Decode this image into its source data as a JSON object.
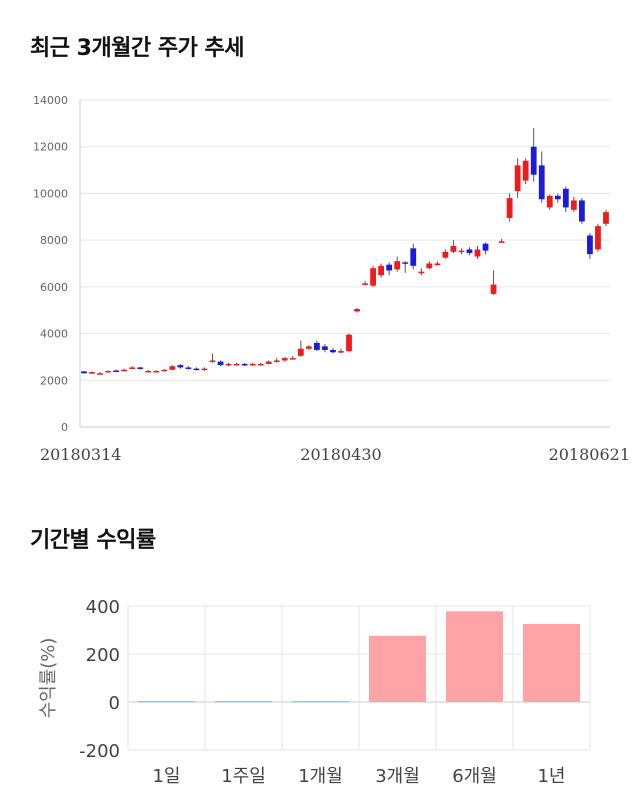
{
  "sections": {
    "price_title": "최근 3개월간 주가 추세",
    "returns_title": "기간별 수익률"
  },
  "colors": {
    "up": "#ee1c1c",
    "down": "#1c1cd8",
    "bar_positive": "#ffa3a6",
    "bar_zero_line": "#9fc3dc",
    "grid": "#e6e6e6"
  },
  "chart_data": [
    {
      "type": "candlestick",
      "title": "최근 3개월간 주가 추세",
      "y_ticks": [
        0,
        2000,
        4000,
        6000,
        8000,
        10000,
        12000,
        14000
      ],
      "ylim": [
        0,
        14000
      ],
      "x_tick_labels": [
        "20180314",
        "20180430",
        "20180621"
      ],
      "x_tick_index": [
        0,
        32,
        65
      ],
      "grid": true,
      "candles": [
        [
          2380,
          2300,
          2400,
          2280
        ],
        [
          2300,
          2350,
          2380,
          2270
        ],
        [
          2300,
          2300,
          2350,
          2250
        ],
        [
          2350,
          2400,
          2420,
          2330
        ],
        [
          2420,
          2380,
          2460,
          2350
        ],
        [
          2400,
          2450,
          2500,
          2380
        ],
        [
          2500,
          2550,
          2600,
          2480
        ],
        [
          2550,
          2500,
          2580,
          2450
        ],
        [
          2400,
          2400,
          2450,
          2350
        ],
        [
          2350,
          2400,
          2430,
          2330
        ],
        [
          2400,
          2450,
          2480,
          2380
        ],
        [
          2450,
          2600,
          2650,
          2430
        ],
        [
          2650,
          2550,
          2700,
          2500
        ],
        [
          2550,
          2500,
          2600,
          2450
        ],
        [
          2500,
          2450,
          2550,
          2420
        ],
        [
          2450,
          2500,
          2550,
          2400
        ],
        [
          2800,
          2850,
          3150,
          2750
        ],
        [
          2800,
          2650,
          2850,
          2600
        ],
        [
          2650,
          2700,
          2750,
          2600
        ],
        [
          2700,
          2700,
          2750,
          2650
        ],
        [
          2700,
          2650,
          2750,
          2600
        ],
        [
          2650,
          2700,
          2750,
          2620
        ],
        [
          2700,
          2700,
          2750,
          2650
        ],
        [
          2700,
          2800,
          2850,
          2680
        ],
        [
          2800,
          2850,
          2950,
          2750
        ],
        [
          2850,
          2950,
          3000,
          2800
        ],
        [
          2950,
          2950,
          3050,
          2900
        ],
        [
          3050,
          3350,
          3700,
          3000
        ],
        [
          3350,
          3450,
          3500,
          3300
        ],
        [
          3600,
          3300,
          3700,
          3250
        ],
        [
          3450,
          3300,
          3550,
          3200
        ],
        [
          3300,
          3200,
          3400,
          3150
        ],
        [
          3200,
          3250,
          3350,
          3150
        ],
        [
          3250,
          3950,
          4000,
          3200
        ],
        [
          4950,
          5050,
          5100,
          4900
        ],
        [
          6150,
          6150,
          6250,
          6050
        ],
        [
          6050,
          6800,
          6900,
          6000
        ],
        [
          6500,
          6900,
          7000,
          6400
        ],
        [
          6950,
          6700,
          7050,
          6500
        ],
        [
          6750,
          7100,
          7300,
          6650
        ],
        [
          7050,
          7000,
          7100,
          6600
        ],
        [
          7650,
          6900,
          7850,
          6750
        ],
        [
          6650,
          6650,
          6800,
          6500
        ],
        [
          6800,
          7000,
          7100,
          6750
        ],
        [
          7000,
          7000,
          7100,
          6900
        ],
        [
          7250,
          7500,
          7600,
          7200
        ],
        [
          7500,
          7750,
          8000,
          7450
        ],
        [
          7500,
          7550,
          7650,
          7400
        ],
        [
          7600,
          7450,
          7700,
          7350
        ],
        [
          7300,
          7600,
          7750,
          7200
        ],
        [
          7850,
          7550,
          7900,
          7400
        ],
        [
          5700,
          6100,
          6700,
          5650
        ],
        [
          7950,
          7950,
          8050,
          7900
        ],
        [
          8950,
          9800,
          10000,
          8800
        ],
        [
          10100,
          11200,
          11500,
          9800
        ],
        [
          10550,
          11400,
          11500,
          10400
        ],
        [
          12000,
          10800,
          12800,
          10500
        ],
        [
          11200,
          9750,
          11800,
          9600
        ],
        [
          9400,
          9900,
          9950,
          9300
        ],
        [
          9900,
          9750,
          10000,
          9600
        ],
        [
          10200,
          9400,
          10300,
          9200
        ],
        [
          9300,
          9700,
          9850,
          9200
        ],
        [
          9700,
          8800,
          9800,
          8700
        ],
        [
          8200,
          7400,
          8300,
          7200
        ],
        [
          7600,
          8600,
          8700,
          7500
        ],
        [
          8700,
          9200,
          9300,
          8600
        ]
      ]
    },
    {
      "type": "bar",
      "title": "기간별 수익률",
      "ylabel": "수익률(%)",
      "categories": [
        "1일",
        "1주일",
        "1개월",
        "3개월",
        "6개월",
        "1년"
      ],
      "values": [
        -1,
        -2,
        2,
        276,
        378,
        325
      ],
      "y_ticks": [
        -200,
        0,
        200,
        400
      ],
      "ylim": [
        -200,
        400
      ],
      "grid": true
    }
  ]
}
